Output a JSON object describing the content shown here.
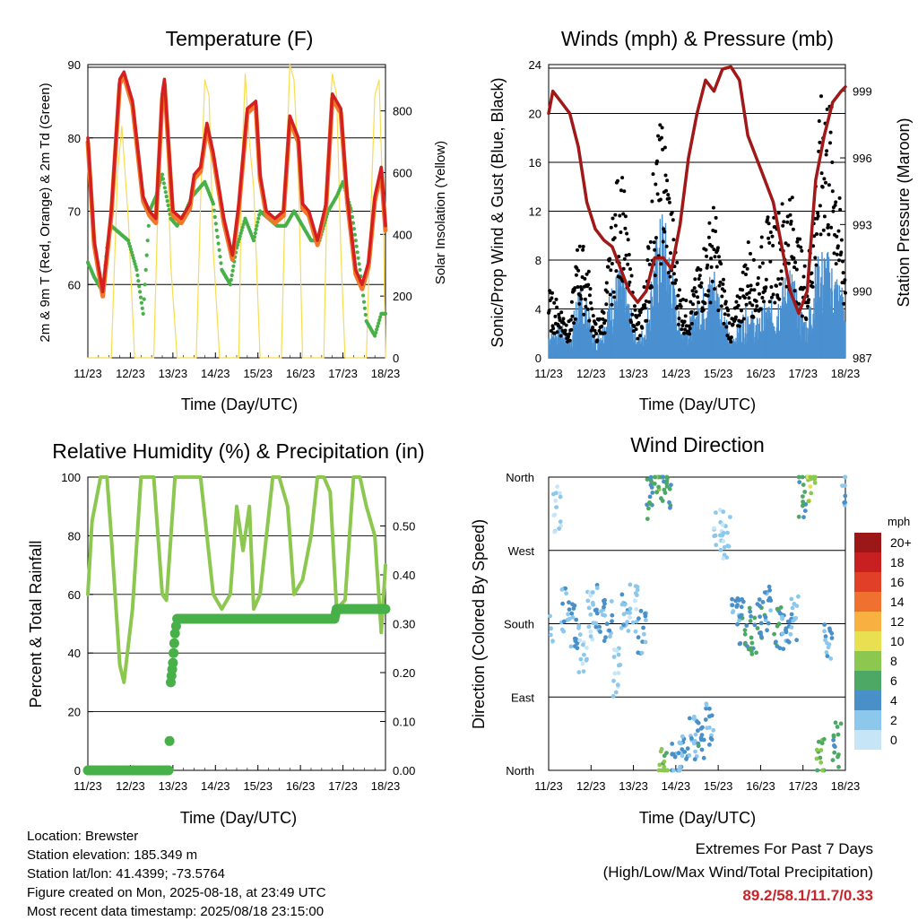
{
  "panels": {
    "temperature": {
      "title": "Temperature (F)",
      "ylabel_left": "2m & 9m T (Red, Orange) & 2m Td (Green)",
      "ylabel_right": "Solar Insolation (Yellow)",
      "xlabel": "Time (Day/UTC)",
      "yticks_left": [
        "60",
        "70",
        "80",
        "90"
      ],
      "yticks_right": [
        "0",
        "200",
        "400",
        "600",
        "800"
      ]
    },
    "winds": {
      "title": "Winds (mph) & Pressure (mb)",
      "ylabel_left": "Sonic/Prop Wind & Gust (Blue, Black)",
      "ylabel_right": "Station Pressure (Maroon)",
      "xlabel": "Time (Day/UTC)",
      "yticks_left": [
        "0",
        "4",
        "8",
        "12",
        "16",
        "20",
        "24"
      ],
      "yticks_right": [
        "987",
        "990",
        "993",
        "996",
        "999"
      ]
    },
    "humidity": {
      "title": "Relative Humidity (%) & Precipitation (in)",
      "ylabel_left": "Percent & Total Rainfall",
      "xlabel": "Time (Day/UTC)",
      "yticks_left": [
        "0",
        "20",
        "40",
        "60",
        "80",
        "100"
      ],
      "yticks_right": [
        "0.00",
        "0.10",
        "0.20",
        "0.30",
        "0.40",
        "0.50"
      ]
    },
    "direction": {
      "title": "Wind Direction",
      "ylabel_left": "Direction (Colored By Speed)",
      "xlabel": "Time (Day/UTC)",
      "yticks_left": [
        "North",
        "East",
        "South",
        "West",
        "North"
      ],
      "legend_title": "mph",
      "legend_labels": [
        "0",
        "2",
        "4",
        "6",
        "8",
        "10",
        "12",
        "14",
        "16",
        "18",
        "20+"
      ],
      "legend_colors": [
        "#c6e6f7",
        "#8cc8ec",
        "#4a90c8",
        "#4ca864",
        "#8cc850",
        "#e8e050",
        "#f8b040",
        "#f07030",
        "#e04028",
        "#c82020",
        "#9c1818"
      ]
    }
  },
  "xticks": [
    "11/23",
    "12/23",
    "13/23",
    "14/23",
    "15/23",
    "16/23",
    "17/23",
    "18/23"
  ],
  "footer": {
    "location": "Location: Brewster",
    "elevation": "Station elevation: 185.349 m",
    "latlon": "Station lat/lon: 41.4399; -73.5764",
    "created": "Figure created on Mon, 2025-08-18, at 23:49 UTC",
    "recent": "Most recent data timestamp: 2025/08/18 23:15:00"
  },
  "extremes": {
    "heading": "Extremes For Past 7 Days",
    "subheading": "(High/Low/Max Wind/Total Precipitation)",
    "values": "89.2/58.1/11.7/0.33"
  },
  "colors": {
    "temp2m": "#d42020",
    "temp9m": "#f07828",
    "dewpoint": "#48b048",
    "solar": "#f8dc50",
    "wind": "#4a90d0",
    "gust": "#000000",
    "pressure": "#a01818",
    "rh": "#8cc850",
    "precip": "#48b048"
  },
  "chart_data": [
    {
      "type": "line",
      "panel": "temperature",
      "title": "Temperature (F)",
      "xlabel": "Time (Day/UTC)",
      "ylabel": "2m & 9m T (Red, Orange) & 2m Td (Green)",
      "x_range_day": [
        11,
        18
      ],
      "ylim": [
        50,
        90
      ],
      "y2lim": [
        0,
        950
      ],
      "series": [
        {
          "name": "2m T",
          "x": [
            11.0,
            11.15,
            11.35,
            11.55,
            11.75,
            11.85,
            12.05,
            12.3,
            12.45,
            12.6,
            12.75,
            12.8,
            13.0,
            13.2,
            13.4,
            13.5,
            13.65,
            13.8,
            13.95,
            14.2,
            14.4,
            14.55,
            14.75,
            14.95,
            15.05,
            15.2,
            15.4,
            15.6,
            15.75,
            15.95,
            16.05,
            16.2,
            16.4,
            16.6,
            16.75,
            16.95,
            17.1,
            17.3,
            17.45,
            17.6,
            17.75,
            17.9,
            18.0
          ],
          "y": [
            80,
            66,
            59,
            70,
            88,
            89,
            85,
            72,
            70,
            69,
            86,
            88,
            70,
            69,
            71,
            75,
            76,
            82,
            78,
            69,
            64,
            71,
            84,
            85,
            75,
            70,
            69,
            70,
            83,
            80,
            71,
            70,
            66,
            71,
            86,
            84,
            72,
            62,
            60,
            63,
            72,
            76,
            68
          ]
        },
        {
          "name": "2m Td",
          "x": [
            11.0,
            11.15,
            11.35,
            11.45,
            11.55,
            11.75,
            11.95,
            12.15,
            12.3,
            12.45,
            12.6,
            12.75,
            12.95,
            13.1,
            13.3,
            13.45,
            13.6,
            13.75,
            13.95,
            14.15,
            14.35,
            14.5,
            14.7,
            14.9,
            15.05,
            15.25,
            15.45,
            15.65,
            15.85,
            16.05,
            16.25,
            16.45,
            16.65,
            16.85,
            17.0,
            17.2,
            17.4,
            17.55,
            17.75,
            17.9,
            18.0
          ],
          "y": [
            63,
            61,
            59,
            65,
            68,
            67,
            66,
            62,
            56,
            70,
            72,
            75,
            69,
            68,
            70,
            72,
            73,
            74,
            71,
            62,
            60,
            65,
            69,
            66,
            70,
            69,
            68,
            68,
            70,
            68,
            66,
            66,
            70,
            72,
            74,
            70,
            62,
            55,
            53,
            56,
            56
          ]
        },
        {
          "name": "Solar Insolation",
          "x": [
            11.0,
            11.55,
            11.7,
            11.8,
            11.95,
            12.1,
            12.55,
            12.7,
            12.82,
            12.95,
            13.1,
            13.55,
            13.65,
            13.75,
            13.85,
            13.95,
            14.1,
            14.55,
            14.62,
            14.7,
            14.8,
            14.9,
            15.05,
            15.55,
            15.65,
            15.75,
            15.85,
            15.95,
            16.05,
            16.55,
            16.65,
            16.75,
            16.85,
            16.95,
            17.05,
            17.55,
            17.65,
            17.75,
            17.85,
            17.95,
            18.0
          ],
          "y": [
            0,
            0,
            600,
            750,
            450,
            0,
            0,
            750,
            890,
            300,
            0,
            0,
            500,
            900,
            850,
            350,
            0,
            0,
            620,
            920,
            700,
            550,
            0,
            0,
            550,
            950,
            900,
            600,
            0,
            0,
            700,
            920,
            850,
            350,
            0,
            0,
            450,
            850,
            900,
            450,
            0
          ]
        }
      ]
    },
    {
      "type": "line",
      "panel": "winds",
      "title": "Winds (mph) & Pressure (mb)",
      "xlabel": "Time (Day/UTC)",
      "ylabel": "Sonic/Prop Wind & Gust (Blue, Black)",
      "x_range_day": [
        11,
        18
      ],
      "ylim": [
        0,
        24
      ],
      "y2lim": [
        987,
        1000.2
      ],
      "series": [
        {
          "name": "Wind",
          "x": [
            11.0,
            11.3,
            11.5,
            11.7,
            11.9,
            12.1,
            12.3,
            12.5,
            12.7,
            12.9,
            13.1,
            13.3,
            13.5,
            13.7,
            13.9,
            14.1,
            14.3,
            14.5,
            14.7,
            14.9,
            15.1,
            15.3,
            15.5,
            15.7,
            15.9,
            16.1,
            16.3,
            16.5,
            16.7,
            16.9,
            17.1,
            17.3,
            17.5,
            17.7,
            17.9,
            18.0
          ],
          "y": [
            1.5,
            1.8,
            1,
            4,
            3,
            1,
            2,
            4,
            5,
            3,
            1,
            2,
            6,
            8,
            5,
            2,
            2,
            3,
            4,
            5,
            3,
            1,
            2,
            3,
            2,
            3,
            3,
            4,
            5,
            3,
            2,
            5,
            6,
            5,
            4,
            3
          ]
        },
        {
          "name": "Gust",
          "x": [
            11.0,
            11.3,
            11.5,
            11.7,
            11.9,
            12.1,
            12.3,
            12.5,
            12.7,
            12.9,
            13.1,
            13.3,
            13.5,
            13.7,
            13.9,
            14.1,
            14.3,
            14.5,
            14.7,
            14.9,
            15.1,
            15.3,
            15.5,
            15.7,
            15.9,
            16.1,
            16.3,
            16.5,
            16.7,
            16.9,
            17.1,
            17.3,
            17.5,
            17.7,
            17.9,
            18.0
          ],
          "y": [
            4,
            3,
            2,
            7,
            6,
            2,
            3,
            8,
            12,
            6,
            2,
            5,
            12,
            14,
            9,
            4,
            3,
            5,
            7,
            9,
            5,
            2,
            4,
            7,
            5,
            8,
            8,
            9,
            10,
            7,
            5,
            11,
            17,
            14,
            8,
            6
          ]
        },
        {
          "name": "Station Pressure",
          "x": [
            11.0,
            11.1,
            11.3,
            11.5,
            11.7,
            11.9,
            12.1,
            12.3,
            12.5,
            12.7,
            12.9,
            13.1,
            13.3,
            13.5,
            13.7,
            13.9,
            14.1,
            14.3,
            14.5,
            14.7,
            14.9,
            15.1,
            15.3,
            15.5,
            15.7,
            15.9,
            16.1,
            16.3,
            16.5,
            16.7,
            16.9,
            17.1,
            17.3,
            17.5,
            17.7,
            17.9,
            18.0
          ],
          "y": [
            998,
            999,
            998.5,
            998,
            996.5,
            994,
            992.8,
            992.3,
            992,
            991,
            990,
            989.5,
            990,
            991.5,
            991.5,
            991,
            993,
            996,
            998,
            999.5,
            999,
            1000,
            1000.1,
            999.5,
            997,
            996,
            995,
            994,
            992,
            990,
            989,
            990,
            995,
            997,
            998.5,
            999,
            999.2
          ]
        }
      ]
    },
    {
      "type": "line",
      "panel": "humidity",
      "title": "Relative Humidity (%) & Precipitation (in)",
      "xlabel": "Time (Day/UTC)",
      "ylabel": "Percent & Total Rainfall",
      "x_range_day": [
        11,
        18
      ],
      "ylim": [
        0,
        100
      ],
      "y2lim": [
        0,
        0.6
      ],
      "series": [
        {
          "name": "Relative Humidity",
          "x": [
            11.0,
            11.1,
            11.3,
            11.45,
            11.55,
            11.75,
            11.85,
            12.05,
            12.25,
            12.4,
            12.55,
            12.75,
            12.85,
            13.05,
            13.2,
            13.35,
            13.5,
            13.65,
            13.8,
            13.95,
            14.15,
            14.35,
            14.5,
            14.65,
            14.8,
            14.9,
            15.05,
            15.2,
            15.35,
            15.5,
            15.7,
            15.85,
            16.05,
            16.25,
            16.4,
            16.55,
            16.7,
            16.85,
            17.05,
            17.25,
            17.4,
            17.55,
            17.75,
            17.9,
            18.0
          ],
          "y": [
            60,
            85,
            100,
            100,
            80,
            36,
            30,
            55,
            100,
            100,
            100,
            60,
            58,
            100,
            100,
            100,
            100,
            100,
            80,
            60,
            55,
            60,
            90,
            75,
            90,
            55,
            60,
            80,
            100,
            100,
            90,
            60,
            65,
            80,
            100,
            100,
            95,
            55,
            58,
            100,
            100,
            90,
            80,
            47,
            70
          ]
        },
        {
          "name": "Total Rainfall",
          "x": [
            11.0,
            12.9,
            12.92,
            12.95,
            13.0,
            13.05,
            13.1,
            13.2,
            16.8,
            16.85,
            17.3,
            17.35,
            18.0
          ],
          "y": [
            0,
            0,
            0.06,
            0.18,
            0.22,
            0.28,
            0.31,
            0.31,
            0.31,
            0.33,
            0.33,
            0.33,
            0.33
          ]
        }
      ]
    },
    {
      "type": "scatter",
      "panel": "direction",
      "title": "Wind Direction",
      "xlabel": "Time (Day/UTC)",
      "ylabel": "Direction (Colored By Speed)",
      "x_range_day": [
        11,
        18
      ],
      "ylim_deg": [
        0,
        360
      ],
      "series": [
        {
          "name": "Wind Direction",
          "x": [
            11.0,
            11.2,
            11.4,
            11.6,
            11.8,
            12.0,
            12.2,
            12.4,
            12.6,
            12.8,
            13.0,
            13.2,
            13.4,
            13.6,
            13.7,
            13.8,
            14.0,
            14.2,
            14.4,
            14.6,
            14.8,
            15.0,
            15.2,
            15.4,
            15.6,
            15.8,
            16.0,
            16.2,
            16.4,
            16.6,
            16.8,
            17.0,
            17.2,
            17.4,
            17.6,
            17.8,
            18.0
          ],
          "y": [
            170,
            320,
            200,
            180,
            150,
            190,
            200,
            180,
            120,
            190,
            200,
            170,
            330,
            355,
            5,
            350,
            10,
            20,
            40,
            30,
            60,
            300,
            290,
            190,
            180,
            170,
            185,
            200,
            180,
            175,
            190,
            340,
            355,
            10,
            150,
            30,
            350
          ],
          "speed": [
            2,
            1,
            3,
            4,
            2,
            2,
            3,
            4,
            2,
            3,
            2,
            4,
            5,
            7,
            8,
            6,
            4,
            4,
            3,
            5,
            4,
            2,
            2,
            4,
            5,
            6,
            5,
            4,
            5,
            4,
            3,
            6,
            9,
            8,
            4,
            6,
            3
          ]
        }
      ]
    }
  ]
}
